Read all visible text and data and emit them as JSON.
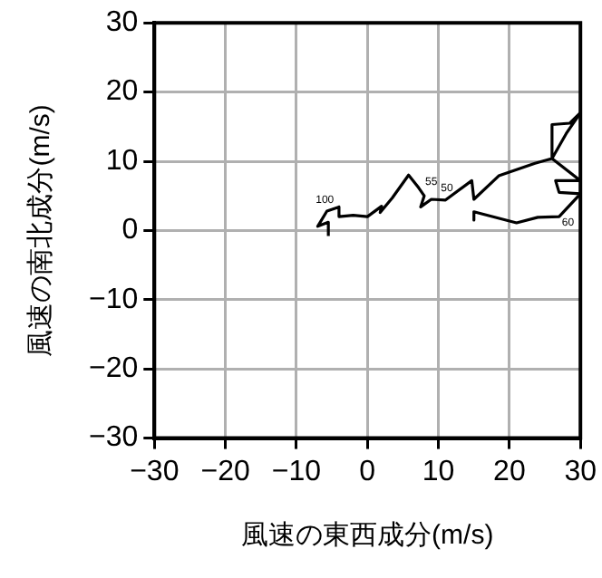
{
  "chart_data": {
    "type": "line",
    "xlabel": "風速の東西成分(m/s)",
    "ylabel": "風速の南北成分(m/s)",
    "x": [
      -5.5,
      -5.5,
      -7,
      -5.7,
      -4,
      -4,
      -2,
      0,
      2,
      1.8,
      3.5,
      5.8,
      7.2,
      8,
      7.5,
      9,
      11,
      14.7,
      15,
      18.5,
      23.6,
      26,
      26,
      28.5,
      30,
      28,
      26,
      30,
      26.5,
      27,
      30,
      27,
      24,
      21,
      15,
      15
    ],
    "series": [
      {
        "color": "#000000",
        "values": [
          -0.8,
          1.2,
          0.6,
          2.8,
          3.4,
          2,
          2.2,
          2,
          3.5,
          2.6,
          4.7,
          8,
          6.2,
          5,
          3.4,
          4.5,
          4.4,
          7.2,
          4.5,
          7.9,
          9.7,
          10.4,
          15.3,
          15.5,
          17,
          14,
          10.4,
          7.2,
          7.2,
          5.5,
          5.3,
          2,
          1.9,
          1.1,
          2.7,
          1.5
        ]
      }
    ],
    "xlim": [
      -30,
      30
    ],
    "ylim": [
      -30,
      30
    ],
    "xticks": [
      -30,
      -20,
      -10,
      0,
      10,
      20,
      30
    ],
    "yticks": [
      -30,
      -20,
      -10,
      0,
      10,
      20,
      30
    ],
    "grid": true,
    "marker": "none",
    "line_style": "solid",
    "legend": false,
    "annotations": [
      {
        "text": "100",
        "x": -6,
        "y": 3.6
      },
      {
        "text": "55",
        "x": 9,
        "y": 6.2
      },
      {
        "text": "50",
        "x": 11.2,
        "y": 5.3
      },
      {
        "text": "60",
        "x": 27,
        "y": 2
      }
    ]
  }
}
